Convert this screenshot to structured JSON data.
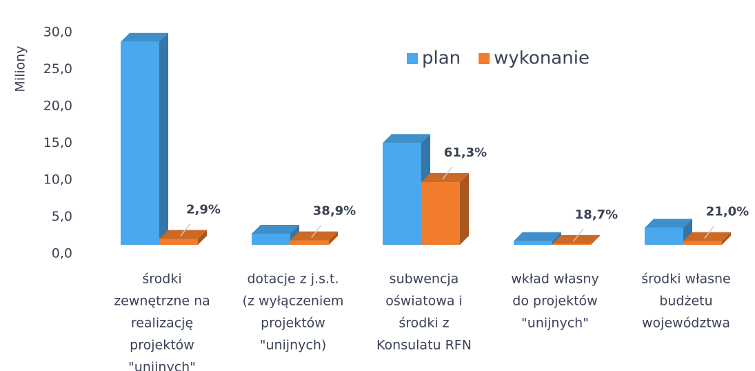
{
  "chart_data": {
    "type": "bar3d",
    "y_label": "Miliony",
    "categories": [
      [
        "środki",
        "zewnętrzne na",
        "realizację",
        "projektów",
        "\"unijnych\""
      ],
      [
        "dotacje z j.s.t.",
        "(z wyłączeniem",
        "projektów",
        "\"unijnych)"
      ],
      [
        "subwencja",
        "oświatowa i",
        "środki z",
        "Konsulatu RFN"
      ],
      [
        "wkład własny",
        "do projektów",
        "\"unijnych\""
      ],
      [
        "środki własne",
        "budżetu",
        "województwa"
      ]
    ],
    "series": [
      {
        "name": "plan",
        "color": "#4aa8ee",
        "values": [
          27.5,
          1.5,
          13.8,
          0.5,
          2.3
        ]
      },
      {
        "name": "wykonanie",
        "color": "#f07c2c",
        "values": [
          0.8,
          0.6,
          8.5,
          0.1,
          0.5
        ]
      }
    ],
    "annotations": [
      "2,9%",
      "38,9%",
      "61,3%",
      "18,7%",
      "21,0%"
    ],
    "ylim": [
      0,
      30
    ],
    "yticks": [
      {
        "value": 0,
        "label": "0,0"
      },
      {
        "value": 5,
        "label": "5,0"
      },
      {
        "value": 10,
        "label": "10,0"
      },
      {
        "value": 15,
        "label": "15,0"
      },
      {
        "value": 20,
        "label": "20,0"
      },
      {
        "value": 25,
        "label": "25,0"
      },
      {
        "value": 30,
        "label": "30,0"
      }
    ],
    "legend": "top-right"
  }
}
